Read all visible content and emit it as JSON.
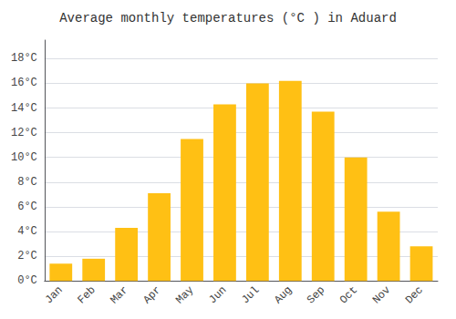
{
  "chart_data": {
    "type": "bar",
    "title": "Average monthly temperatures (°C ) in Aduard",
    "categories": [
      "Jan",
      "Feb",
      "Mar",
      "Apr",
      "May",
      "Jun",
      "Jul",
      "Aug",
      "Sep",
      "Oct",
      "Nov",
      "Dec"
    ],
    "values": [
      1.4,
      1.8,
      4.3,
      7.1,
      11.5,
      14.3,
      16.0,
      16.2,
      13.7,
      10.0,
      5.6,
      2.8
    ],
    "color": "#FFC014",
    "ylim": [
      0,
      19.5
    ],
    "yticks": [
      {
        "value": 0,
        "label": "0°C"
      },
      {
        "value": 2,
        "label": "2°C"
      },
      {
        "value": 4,
        "label": "4°C"
      },
      {
        "value": 6,
        "label": "6°C"
      },
      {
        "value": 8,
        "label": "8°C"
      },
      {
        "value": 10,
        "label": "10°C"
      },
      {
        "value": 12,
        "label": "12°C"
      },
      {
        "value": 14,
        "label": "14°C"
      },
      {
        "value": 16,
        "label": "16°C"
      },
      {
        "value": 18,
        "label": "18°C"
      }
    ],
    "grid": true
  }
}
